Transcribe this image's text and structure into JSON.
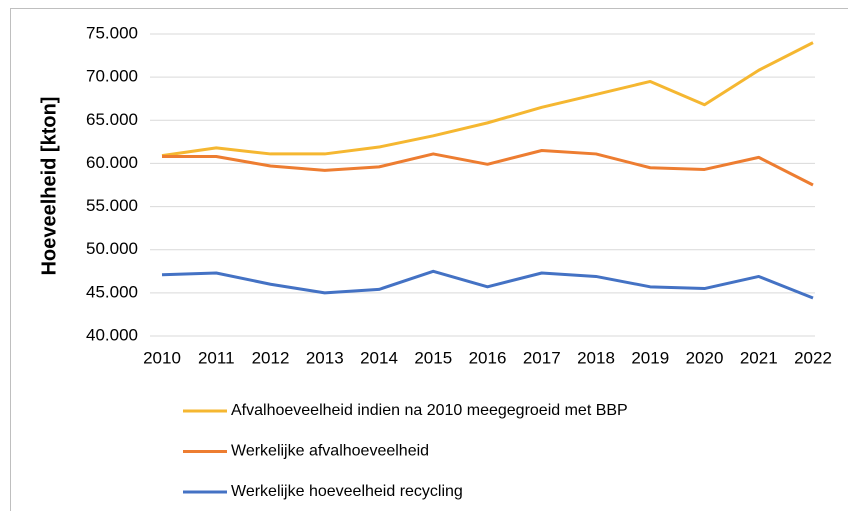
{
  "chart_data": {
    "type": "line",
    "y_label": "Hoeveelheid [kton]",
    "categories": [
      "2010",
      "2011",
      "2012",
      "2013",
      "2014",
      "2015",
      "2016",
      "2017",
      "2018",
      "2019",
      "2020",
      "2021",
      "2022"
    ],
    "series": [
      {
        "name": "Afvalhoeveelheid indien na 2010 meegegroeid met BBP",
        "color": "#f5b731",
        "values": [
          60900,
          61800,
          61100,
          61100,
          61900,
          63200,
          64700,
          66500,
          68000,
          69500,
          66800,
          70800,
          74000
        ]
      },
      {
        "name": "Werkelijke afvalhoeveelheid",
        "color": "#ed7d31",
        "values": [
          60800,
          60800,
          59700,
          59200,
          59600,
          61100,
          59900,
          61500,
          61100,
          59500,
          59300,
          60700,
          57500
        ]
      },
      {
        "name": "Werkelijke hoeveelheid recycling",
        "color": "#4472c4",
        "values": [
          47100,
          47300,
          46000,
          45000,
          45400,
          47500,
          45700,
          47300,
          46900,
          45700,
          45500,
          46900,
          44400
        ]
      }
    ],
    "ylim": [
      40000,
      75000
    ],
    "yticks": [
      {
        "value": 40000,
        "label": "40.000"
      },
      {
        "value": 45000,
        "label": "45.000"
      },
      {
        "value": 50000,
        "label": "50.000"
      },
      {
        "value": 55000,
        "label": "55.000"
      },
      {
        "value": 60000,
        "label": "60.000"
      },
      {
        "value": 65000,
        "label": "65.000"
      },
      {
        "value": 70000,
        "label": "70.000"
      },
      {
        "value": 75000,
        "label": "75.000"
      }
    ],
    "grid": true,
    "legend": "bottom"
  }
}
